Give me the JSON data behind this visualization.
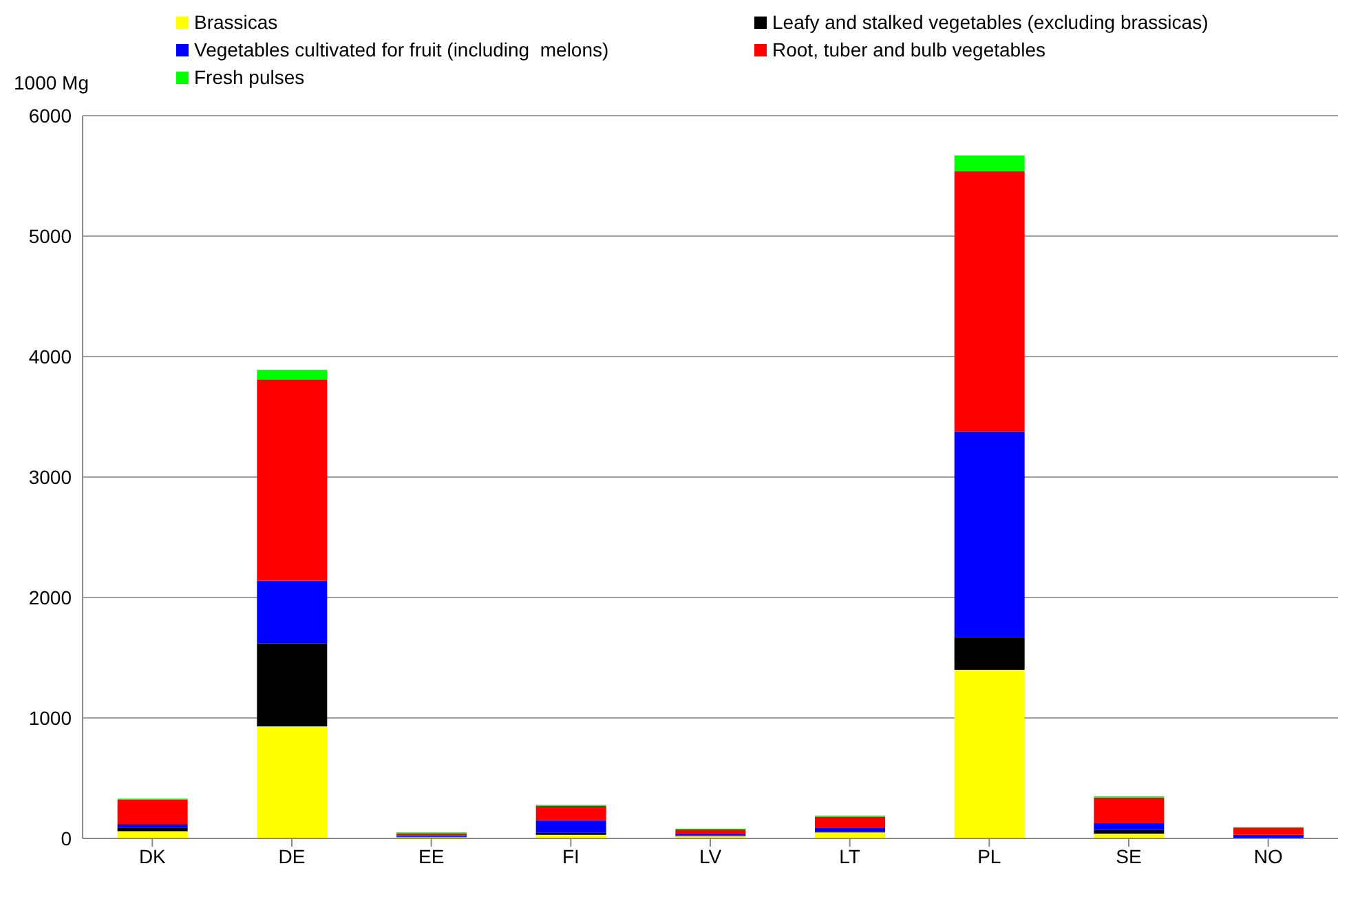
{
  "chart_data": {
    "type": "bar",
    "ylabel": "1000 Mg",
    "stacked": true,
    "grid": "y",
    "legend": "top",
    "categories": [
      "DK",
      "DE",
      "EE",
      "FI",
      "LV",
      "LT",
      "PL",
      "SE",
      "NO"
    ],
    "ylim": [
      0,
      6000
    ],
    "yticks": [
      0,
      1000,
      2000,
      3000,
      4000,
      5000,
      6000
    ],
    "series": [
      {
        "name": "Brassicas",
        "color": "#ffff00",
        "values": [
          60,
          930,
          10,
          30,
          20,
          50,
          1400,
          40,
          null
        ]
      },
      {
        "name": "Leafy and stalked vegetables (excluding brassicas)",
        "color": "#000000",
        "values": [
          30,
          690,
          5,
          20,
          5,
          10,
          270,
          30,
          null
        ]
      },
      {
        "name": "Vegetables cultivated for fruit (including  melons)",
        "color": "#0000ff",
        "values": [
          30,
          520,
          10,
          100,
          10,
          30,
          1710,
          60,
          30
        ]
      },
      {
        "name": "Root, tuber and bulb vegetables",
        "color": "#ff0000",
        "values": [
          200,
          1670,
          15,
          120,
          40,
          90,
          2160,
          210,
          60
        ]
      },
      {
        "name": "Fresh pulses",
        "color": "#00ff00",
        "values": [
          10,
          80,
          10,
          10,
          5,
          10,
          130,
          10,
          5
        ]
      }
    ]
  }
}
